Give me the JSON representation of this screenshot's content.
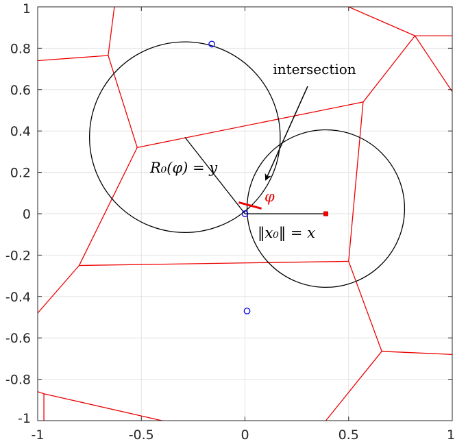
{
  "chart_data": {
    "type": "scatter",
    "title": "",
    "xlabel": "",
    "ylabel": "",
    "xlim": [
      -1,
      1
    ],
    "ylim": [
      -1,
      1
    ],
    "grid": true,
    "legend": "none",
    "x_ticks": [
      -1,
      -0.5,
      0,
      0.5,
      1
    ],
    "y_ticks": [
      -1,
      -0.8,
      -0.6,
      -0.4,
      -0.2,
      0,
      0.2,
      0.4,
      0.6,
      0.8,
      1
    ],
    "x_tick_labels": [
      "-1",
      "-0.5",
      "0",
      "0.5",
      "1"
    ],
    "y_tick_labels": [
      "-1",
      "-0.8",
      "-0.6",
      "-0.4",
      "-0.2",
      "0",
      "0.2",
      "0.4",
      "0.6",
      "0.8",
      "1"
    ],
    "points": [
      {
        "x": -0.16,
        "y": 0.82
      },
      {
        "x": 0.0,
        "y": 0.0
      },
      {
        "x": 0.01,
        "y": -0.47
      }
    ],
    "origin_point": {
      "x": 0.39,
      "y": 0.0
    },
    "circles": [
      {
        "cx": -0.29,
        "cy": 0.37,
        "r": 0.46
      },
      {
        "cx": 0.39,
        "cy": 0.025,
        "r": 0.38
      }
    ],
    "voronoi_edges": [
      [
        [
          -1,
          0.74
        ],
        [
          -0.66,
          0.765
        ]
      ],
      [
        [
          -0.63,
          1.0
        ],
        [
          -0.66,
          0.765
        ]
      ],
      [
        [
          -0.66,
          0.765
        ],
        [
          -0.52,
          0.32
        ]
      ],
      [
        [
          -0.52,
          0.32
        ],
        [
          0.57,
          0.54
        ]
      ],
      [
        [
          -0.52,
          0.32
        ],
        [
          -0.8,
          -0.25
        ]
      ],
      [
        [
          -0.8,
          -0.25
        ],
        [
          -1,
          -0.48
        ]
      ],
      [
        [
          -0.8,
          -0.25
        ],
        [
          0.5,
          -0.23
        ]
      ],
      [
        [
          0.5,
          -0.23
        ],
        [
          0.57,
          0.54
        ]
      ],
      [
        [
          0.57,
          0.54
        ],
        [
          0.82,
          0.86
        ]
      ],
      [
        [
          0.82,
          0.86
        ],
        [
          0.5,
          1.0
        ]
      ],
      [
        [
          0.82,
          0.86
        ],
        [
          1.0,
          0.86
        ]
      ],
      [
        [
          0.82,
          0.86
        ],
        [
          1.0,
          0.59
        ]
      ],
      [
        [
          0.5,
          -0.23
        ],
        [
          0.66,
          -0.665
        ]
      ],
      [
        [
          0.66,
          -0.665
        ],
        [
          1.0,
          -0.68
        ]
      ],
      [
        [
          0.66,
          -0.665
        ],
        [
          0.39,
          -1.0
        ]
      ],
      [
        [
          -1,
          -0.86
        ],
        [
          -0.97,
          -0.87
        ]
      ],
      [
        [
          -0.97,
          -0.87
        ],
        [
          -0.4,
          -1.0
        ]
      ],
      [
        [
          -0.97,
          -0.87
        ],
        [
          -0.97,
          -1.0
        ]
      ]
    ],
    "radius_line": [
      [
        -0.29,
        0.37
      ],
      [
        0.0,
        0.0
      ]
    ],
    "x0_line": [
      [
        0.0,
        0.0
      ],
      [
        0.39,
        0.0
      ]
    ],
    "phi_arc_segment": [
      [
        -0.03,
        0.055
      ],
      [
        0.08,
        0.025
      ]
    ],
    "annotations": {
      "intersection": "intersection",
      "radius": "R₀(φ) = y",
      "norm": "‖x₀‖ = x",
      "phi": "φ"
    },
    "colors": {
      "voronoi": "#ee0000",
      "points": "#0000ee",
      "circles": "#000000",
      "grid": "#e3e3e3",
      "axis": "#262626",
      "origin_marker": "#ee0000",
      "phi": "#ee0000"
    }
  }
}
